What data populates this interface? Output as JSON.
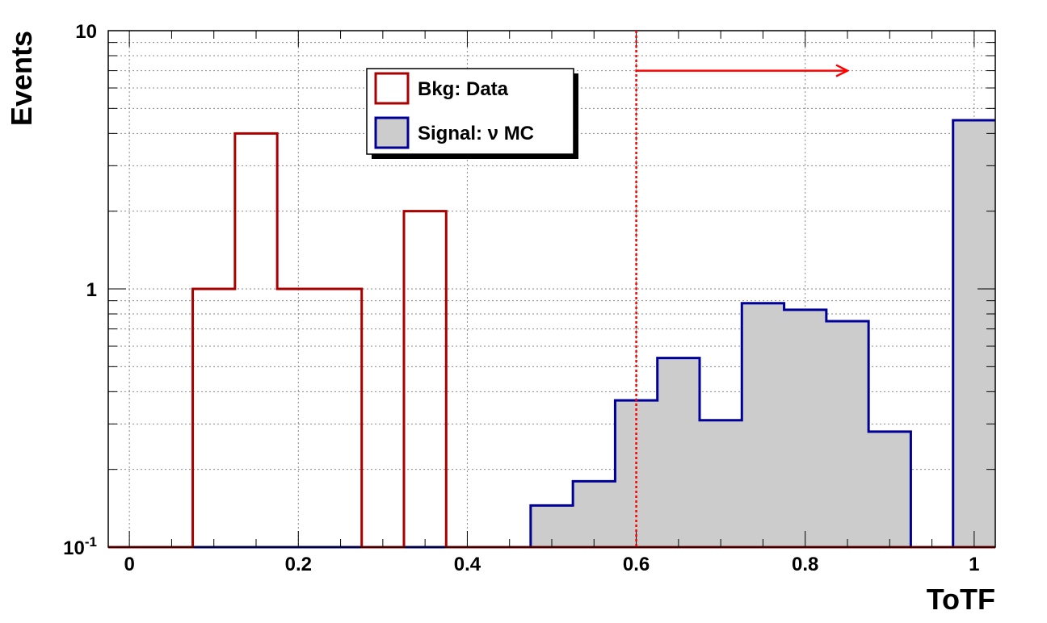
{
  "chart_data": {
    "type": "histogram",
    "xlabel": "ToTF",
    "ylabel": "Events",
    "xlim": [
      -0.025,
      1.025
    ],
    "ylim": [
      0.1,
      10
    ],
    "yscale": "log",
    "grid": true,
    "bin_width": 0.05,
    "bin_edges": [
      -0.025,
      0.025,
      0.075,
      0.125,
      0.175,
      0.225,
      0.275,
      0.325,
      0.375,
      0.425,
      0.475,
      0.525,
      0.575,
      0.625,
      0.675,
      0.725,
      0.775,
      0.825,
      0.875,
      0.925,
      0.975,
      1.025
    ],
    "x_ticks": [
      {
        "value": 0,
        "label": "0"
      },
      {
        "value": 0.2,
        "label": "0.2"
      },
      {
        "value": 0.4,
        "label": "0.4"
      },
      {
        "value": 0.6,
        "label": "0.6"
      },
      {
        "value": 0.8,
        "label": "0.8"
      },
      {
        "value": 1.0,
        "label": "1"
      }
    ],
    "y_ticks": [
      {
        "value": 0.1,
        "base": "10",
        "exp": "-1"
      },
      {
        "value": 1,
        "base": "1",
        "exp": ""
      },
      {
        "value": 10,
        "base": "10",
        "exp": ""
      }
    ],
    "series": [
      {
        "name": "Bkg: Data",
        "color": "#aa0000",
        "fill": "none",
        "values": [
          0,
          0,
          1,
          4,
          1,
          1,
          0,
          2,
          0,
          0,
          0,
          0,
          0,
          0,
          0,
          0,
          0,
          0,
          0,
          0,
          0
        ]
      },
      {
        "name": "Signal: ν MC",
        "color": "#000099",
        "fill": "#cccccc",
        "values": [
          0,
          0,
          0,
          0,
          0,
          0,
          0,
          0,
          0,
          0,
          0.145,
          0.18,
          0.37,
          0.54,
          0.31,
          0.88,
          0.83,
          0.75,
          0.28,
          0,
          4.5
        ]
      }
    ],
    "cut": {
      "x": 0.6,
      "arrow_to_x": 0.85,
      "arrow_y": 7.0,
      "color": "#ff0000"
    },
    "legend": {
      "placement": "top-center-left",
      "entries": [
        "Bkg: Data",
        "Signal: ν MC"
      ]
    }
  }
}
